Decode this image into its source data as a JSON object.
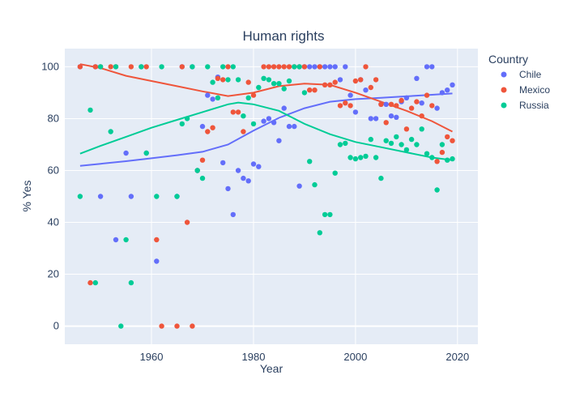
{
  "chart_data": {
    "type": "scatter",
    "title": "Human rights",
    "xlabel": "Year",
    "ylabel": "% Yes",
    "xlim": [
      1943,
      2024
    ],
    "ylim": [
      -7,
      107
    ],
    "xticks": [
      1960,
      1980,
      2000,
      2020
    ],
    "yticks": [
      0,
      20,
      40,
      60,
      80,
      100
    ],
    "grid": true,
    "legend": {
      "title": "Country",
      "position": "right"
    },
    "series": [
      {
        "name": "Chile",
        "color": "#636efa",
        "points": [
          [
            1946,
            100
          ],
          [
            1949,
            100
          ],
          [
            1950,
            50
          ],
          [
            1953,
            33.3
          ],
          [
            1955,
            66.7
          ],
          [
            1956,
            50
          ],
          [
            1958,
            100
          ],
          [
            1959,
            66.7
          ],
          [
            1961,
            25
          ],
          [
            1965,
            50
          ],
          [
            1966,
            100
          ],
          [
            1968,
            100
          ],
          [
            1969,
            60
          ],
          [
            1970,
            77
          ],
          [
            1971,
            89
          ],
          [
            1972,
            87.5
          ],
          [
            1973,
            96
          ],
          [
            1974,
            63
          ],
          [
            1975,
            53
          ],
          [
            1976,
            43
          ],
          [
            1977,
            60
          ],
          [
            1978,
            57
          ],
          [
            1979,
            56
          ],
          [
            1980,
            62.5
          ],
          [
            1981,
            61.5
          ],
          [
            1982,
            79
          ],
          [
            1983,
            80
          ],
          [
            1984,
            78.5
          ],
          [
            1985,
            71.5
          ],
          [
            1986,
            84
          ],
          [
            1987,
            77
          ],
          [
            1988,
            77
          ],
          [
            1989,
            54
          ],
          [
            1990,
            100
          ],
          [
            1991,
            100
          ],
          [
            1992,
            100
          ],
          [
            1993,
            100
          ],
          [
            1994,
            100
          ],
          [
            1995,
            100
          ],
          [
            1996,
            100
          ],
          [
            1997,
            95
          ],
          [
            1998,
            100
          ],
          [
            1999,
            89
          ],
          [
            2000,
            82.5
          ],
          [
            2001,
            95
          ],
          [
            2002,
            91
          ],
          [
            2003,
            80
          ],
          [
            2004,
            80
          ],
          [
            2005,
            85.5
          ],
          [
            2006,
            85.5
          ],
          [
            2007,
            81
          ],
          [
            2008,
            80.5
          ],
          [
            2009,
            86.5
          ],
          [
            2010,
            88
          ],
          [
            2012,
            95.5
          ],
          [
            2013,
            86
          ],
          [
            2014,
            100
          ],
          [
            2015,
            100
          ],
          [
            2016,
            84
          ],
          [
            2017,
            90
          ],
          [
            2018,
            91
          ],
          [
            2019,
            93
          ]
        ],
        "trend": [
          [
            1946,
            61.8
          ],
          [
            1950,
            62.6
          ],
          [
            1955,
            63.6
          ],
          [
            1960,
            64.7
          ],
          [
            1965,
            65.9
          ],
          [
            1970,
            67.2
          ],
          [
            1975,
            70
          ],
          [
            1980,
            75.4
          ],
          [
            1985,
            80.3
          ],
          [
            1990,
            84
          ],
          [
            1995,
            86.5
          ],
          [
            2000,
            87.5
          ],
          [
            2005,
            88
          ],
          [
            2010,
            88.6
          ],
          [
            2015,
            89.2
          ],
          [
            2019,
            89.7
          ]
        ]
      },
      {
        "name": "Mexico",
        "color": "#ef553b",
        "points": [
          [
            1946,
            100
          ],
          [
            1948,
            16.7
          ],
          [
            1949,
            100
          ],
          [
            1950,
            100
          ],
          [
            1952,
            100
          ],
          [
            1953,
            100
          ],
          [
            1956,
            100
          ],
          [
            1959,
            100
          ],
          [
            1961,
            33.3
          ],
          [
            1962,
            0
          ],
          [
            1965,
            0
          ],
          [
            1966,
            100
          ],
          [
            1967,
            40
          ],
          [
            1968,
            0
          ],
          [
            1969,
            60
          ],
          [
            1970,
            64
          ],
          [
            1971,
            75
          ],
          [
            1972,
            76.5
          ],
          [
            1973,
            95.5
          ],
          [
            1974,
            95
          ],
          [
            1975,
            100
          ],
          [
            1976,
            82.5
          ],
          [
            1977,
            82.5
          ],
          [
            1978,
            75
          ],
          [
            1979,
            94
          ],
          [
            1980,
            89
          ],
          [
            1982,
            100
          ],
          [
            1983,
            100
          ],
          [
            1984,
            100
          ],
          [
            1985,
            100
          ],
          [
            1986,
            100
          ],
          [
            1987,
            100
          ],
          [
            1988,
            100
          ],
          [
            1989,
            100
          ],
          [
            1990,
            100
          ],
          [
            1991,
            91
          ],
          [
            1992,
            91
          ],
          [
            1993,
            100
          ],
          [
            1994,
            93
          ],
          [
            1995,
            93
          ],
          [
            1996,
            94
          ],
          [
            1997,
            85
          ],
          [
            1998,
            86
          ],
          [
            1999,
            85
          ],
          [
            2000,
            94.5
          ],
          [
            2001,
            95
          ],
          [
            2002,
            100
          ],
          [
            2003,
            92
          ],
          [
            2004,
            95
          ],
          [
            2005,
            85.5
          ],
          [
            2006,
            78.5
          ],
          [
            2007,
            85.5
          ],
          [
            2008,
            85
          ],
          [
            2009,
            87
          ],
          [
            2010,
            76
          ],
          [
            2011,
            84
          ],
          [
            2012,
            86.5
          ],
          [
            2013,
            81
          ],
          [
            2014,
            89
          ],
          [
            2015,
            85
          ],
          [
            2016,
            63.5
          ],
          [
            2017,
            67
          ],
          [
            2018,
            73
          ],
          [
            2019,
            71.5
          ]
        ],
        "trend": [
          [
            1946,
            101
          ],
          [
            1950,
            99.5
          ],
          [
            1955,
            96.5
          ],
          [
            1960,
            94.5
          ],
          [
            1965,
            92.5
          ],
          [
            1970,
            90.5
          ],
          [
            1975,
            88.7
          ],
          [
            1980,
            90
          ],
          [
            1985,
            92.5
          ],
          [
            1990,
            93.5
          ],
          [
            1995,
            93
          ],
          [
            2000,
            90
          ],
          [
            2005,
            86.5
          ],
          [
            2010,
            83
          ],
          [
            2015,
            79
          ],
          [
            2019,
            75
          ]
        ]
      },
      {
        "name": "Russia",
        "color": "#00cc96",
        "points": [
          [
            1946,
            50
          ],
          [
            1948,
            83.3
          ],
          [
            1949,
            16.7
          ],
          [
            1950,
            100
          ],
          [
            1952,
            75
          ],
          [
            1953,
            100
          ],
          [
            1954,
            0
          ],
          [
            1955,
            33.3
          ],
          [
            1956,
            16.7
          ],
          [
            1958,
            100
          ],
          [
            1959,
            66.7
          ],
          [
            1961,
            50
          ],
          [
            1962,
            100
          ],
          [
            1965,
            50
          ],
          [
            1966,
            78
          ],
          [
            1967,
            80
          ],
          [
            1968,
            100
          ],
          [
            1969,
            60
          ],
          [
            1970,
            57
          ],
          [
            1971,
            100
          ],
          [
            1972,
            94
          ],
          [
            1973,
            88
          ],
          [
            1974,
            100
          ],
          [
            1975,
            95
          ],
          [
            1976,
            100
          ],
          [
            1977,
            95
          ],
          [
            1978,
            81
          ],
          [
            1979,
            88
          ],
          [
            1980,
            78
          ],
          [
            1981,
            92
          ],
          [
            1982,
            95.5
          ],
          [
            1983,
            95
          ],
          [
            1984,
            93.5
          ],
          [
            1985,
            93.5
          ],
          [
            1986,
            91.5
          ],
          [
            1987,
            94.5
          ],
          [
            1988,
            100
          ],
          [
            1989,
            100
          ],
          [
            1990,
            90
          ],
          [
            1991,
            63.5
          ],
          [
            1992,
            54.5
          ],
          [
            1993,
            36
          ],
          [
            1994,
            43
          ],
          [
            1995,
            43
          ],
          [
            1996,
            59
          ],
          [
            1997,
            70
          ],
          [
            1998,
            70.5
          ],
          [
            1999,
            65
          ],
          [
            2000,
            64.5
          ],
          [
            2001,
            65
          ],
          [
            2002,
            65.5
          ],
          [
            2003,
            72
          ],
          [
            2004,
            65
          ],
          [
            2005,
            57
          ],
          [
            2006,
            71.5
          ],
          [
            2007,
            70.5
          ],
          [
            2008,
            73
          ],
          [
            2009,
            70
          ],
          [
            2010,
            68
          ],
          [
            2011,
            72
          ],
          [
            2012,
            70
          ],
          [
            2013,
            76
          ],
          [
            2014,
            66.5
          ],
          [
            2015,
            65
          ],
          [
            2016,
            52.5
          ],
          [
            2017,
            70
          ],
          [
            2018,
            64
          ],
          [
            2019,
            64.5
          ]
        ],
        "trend": [
          [
            1946,
            66.5
          ],
          [
            1950,
            69.5
          ],
          [
            1955,
            73
          ],
          [
            1960,
            76.5
          ],
          [
            1965,
            79.5
          ],
          [
            1970,
            82.5
          ],
          [
            1975,
            85.5
          ],
          [
            1977,
            86.2
          ],
          [
            1980,
            85.5
          ],
          [
            1985,
            83
          ],
          [
            1990,
            78
          ],
          [
            1995,
            74
          ],
          [
            2000,
            71
          ],
          [
            2005,
            69
          ],
          [
            2010,
            67
          ],
          [
            2015,
            65
          ],
          [
            2019,
            64
          ]
        ]
      }
    ]
  }
}
